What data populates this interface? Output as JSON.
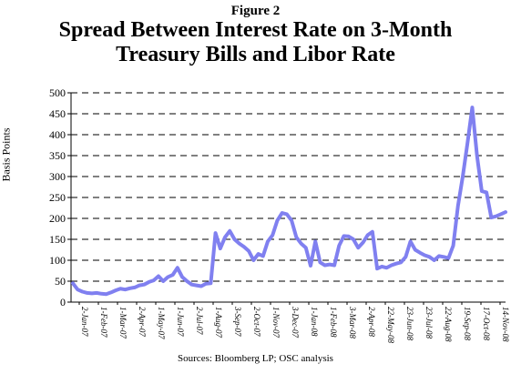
{
  "figure_label": "Figure 2",
  "source": "Sources: Bloomberg LP; OSC analysis",
  "chart_data": {
    "type": "line",
    "title": "Spread Between Interest Rate on 3-Month Treasury Bills and Libor Rate",
    "title_lines": [
      "Spread Between Interest Rate on 3-Month",
      "Treasury Bills and Libor Rate"
    ],
    "xlabel": "",
    "ylabel": "Basis Points",
    "ylim": [
      0,
      500
    ],
    "yticks": [
      0,
      50,
      100,
      150,
      200,
      250,
      300,
      350,
      400,
      450,
      500
    ],
    "grid": "horizontal-dashed",
    "line_color": "#8080f0",
    "x_tick_labels": [
      "2-Jan-07",
      "1-Feb-07",
      "1-Mar-07",
      "2-Apr-07",
      "1-May-07",
      "1-Jun-07",
      "2-Jul-07",
      "1-Aug-07",
      "3-Sep-07",
      "2-Oct-07",
      "1-Nov-07",
      "3-Dec-07",
      "1-Jan-08",
      "1-Feb-08",
      "3-Mar-08",
      "2-Apr-08",
      "22-May-08",
      "23-Jun-08",
      "23-Jul-08",
      "22-Aug-08",
      "19-Sep-08",
      "17-Oct-08",
      "14-Nov-08"
    ],
    "series": [
      {
        "values": [
          45,
          30,
          25,
          22,
          21,
          22,
          20,
          19,
          23,
          28,
          32,
          30,
          33,
          35,
          40,
          42,
          48,
          52,
          62,
          50,
          60,
          65,
          82,
          60,
          50,
          42,
          40,
          38,
          44,
          45,
          165,
          128,
          155,
          170,
          150,
          140,
          132,
          122,
          100,
          115,
          110,
          145,
          160,
          195,
          213,
          210,
          195,
          155,
          140,
          130,
          87,
          145,
          95,
          88,
          90,
          88,
          135,
          158,
          157,
          150,
          130,
          142,
          160,
          168,
          80,
          85,
          82,
          88,
          92,
          95,
          108,
          145,
          125,
          118,
          112,
          108,
          100,
          110,
          108,
          105,
          135,
          230,
          300,
          380,
          465,
          350,
          265,
          262,
          202,
          205,
          210,
          215
        ]
      }
    ]
  }
}
